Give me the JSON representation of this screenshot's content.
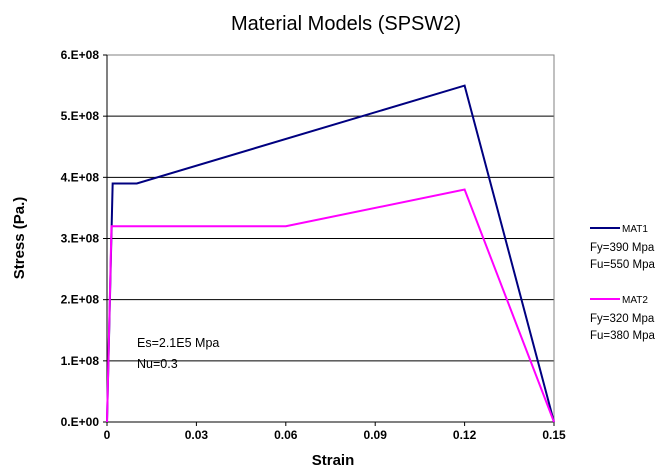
{
  "chart_data": {
    "type": "line",
    "title": "Material Models (SPSW2)",
    "xlabel": "Strain",
    "ylabel": "Stress (Pa.)",
    "xlim": [
      0,
      0.15
    ],
    "ylim": [
      0,
      600000000
    ],
    "x_ticks": [
      0,
      0.03,
      0.06,
      0.09,
      0.12,
      0.15
    ],
    "x_tick_labels": [
      "0",
      "0.03",
      "0.06",
      "0.09",
      "0.12",
      "0.15"
    ],
    "y_ticks": [
      0,
      100000000,
      200000000,
      300000000,
      400000000,
      500000000,
      600000000
    ],
    "y_tick_labels": [
      "0.E+00",
      "1.E+08",
      "2.E+08",
      "3.E+08",
      "4.E+08",
      "5.E+08",
      "6.E+08"
    ],
    "grid": "horizontal",
    "legend_position": "right",
    "series": [
      {
        "name": "MAT1",
        "color": "#000080",
        "notes": [
          "Fy=390 Mpa",
          "Fu=550 Mpa"
        ],
        "points": [
          [
            0,
            0
          ],
          [
            0.0019,
            390000000
          ],
          [
            0.01,
            390000000
          ],
          [
            0.12,
            550000000
          ],
          [
            0.15,
            0
          ]
        ]
      },
      {
        "name": "MAT2",
        "color": "#ff00ff",
        "notes": [
          "Fy=320 Mpa",
          "Fu=380 Mpa"
        ],
        "points": [
          [
            0,
            0
          ],
          [
            0.0015,
            320000000
          ],
          [
            0.06,
            320000000
          ],
          [
            0.12,
            380000000
          ],
          [
            0.15,
            0
          ]
        ]
      }
    ],
    "annotations": [
      "Es=2.1E5 Mpa",
      "Nu=0.3"
    ]
  }
}
